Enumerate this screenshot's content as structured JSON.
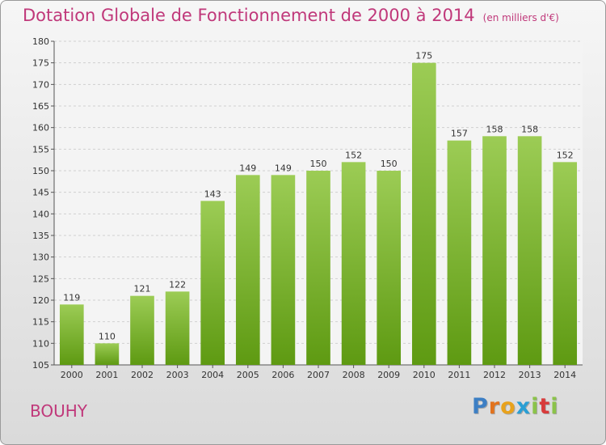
{
  "header": {
    "title": "Dotation Globale de Fonctionnement de 2000 à 2014",
    "subtitle": "(en milliers d'€)"
  },
  "footer": {
    "commune": "BOUHY",
    "logo_text": "Proxiti"
  },
  "colors": {
    "bar_top": "#9ccc55",
    "bar_bottom": "#5e9a12",
    "title": "#c0387a",
    "grid": "#d0d0d0"
  },
  "chart_data": {
    "type": "bar",
    "title": "Dotation Globale de Fonctionnement de 2000 à 2014",
    "subtitle": "(en milliers d'€)",
    "categories": [
      "2000",
      "2001",
      "2002",
      "2003",
      "2004",
      "2005",
      "2006",
      "2007",
      "2008",
      "2009",
      "2010",
      "2011",
      "2012",
      "2013",
      "2014"
    ],
    "values": [
      119,
      110,
      121,
      122,
      143,
      149,
      149,
      150,
      152,
      150,
      175,
      157,
      158,
      158,
      152
    ],
    "ylim": [
      105,
      180
    ],
    "yticks": [
      105,
      110,
      115,
      120,
      125,
      130,
      135,
      140,
      145,
      150,
      155,
      160,
      165,
      170,
      175,
      180
    ],
    "grid": true,
    "legend": "none",
    "xlabel": "",
    "ylabel": ""
  }
}
